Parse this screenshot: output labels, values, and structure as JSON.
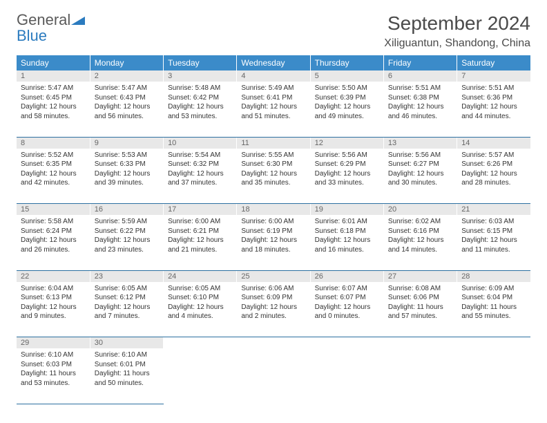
{
  "logo": {
    "word1": "General",
    "word2": "Blue"
  },
  "title": "September 2024",
  "location": "Xiliguantun, Shandong, China",
  "colors": {
    "header_bg": "#3b8bc9",
    "header_text": "#ffffff",
    "daynum_bg": "#e8e8e8",
    "daynum_text": "#666666",
    "rule": "#2b6fa0",
    "logo_gray": "#5a5a5a",
    "logo_blue": "#2b7bbf"
  },
  "weekdays": [
    "Sunday",
    "Monday",
    "Tuesday",
    "Wednesday",
    "Thursday",
    "Friday",
    "Saturday"
  ],
  "days": [
    {
      "n": "1",
      "sr": "5:47 AM",
      "ss": "6:45 PM",
      "dl": "12 hours and 58 minutes."
    },
    {
      "n": "2",
      "sr": "5:47 AM",
      "ss": "6:43 PM",
      "dl": "12 hours and 56 minutes."
    },
    {
      "n": "3",
      "sr": "5:48 AM",
      "ss": "6:42 PM",
      "dl": "12 hours and 53 minutes."
    },
    {
      "n": "4",
      "sr": "5:49 AM",
      "ss": "6:41 PM",
      "dl": "12 hours and 51 minutes."
    },
    {
      "n": "5",
      "sr": "5:50 AM",
      "ss": "6:39 PM",
      "dl": "12 hours and 49 minutes."
    },
    {
      "n": "6",
      "sr": "5:51 AM",
      "ss": "6:38 PM",
      "dl": "12 hours and 46 minutes."
    },
    {
      "n": "7",
      "sr": "5:51 AM",
      "ss": "6:36 PM",
      "dl": "12 hours and 44 minutes."
    },
    {
      "n": "8",
      "sr": "5:52 AM",
      "ss": "6:35 PM",
      "dl": "12 hours and 42 minutes."
    },
    {
      "n": "9",
      "sr": "5:53 AM",
      "ss": "6:33 PM",
      "dl": "12 hours and 39 minutes."
    },
    {
      "n": "10",
      "sr": "5:54 AM",
      "ss": "6:32 PM",
      "dl": "12 hours and 37 minutes."
    },
    {
      "n": "11",
      "sr": "5:55 AM",
      "ss": "6:30 PM",
      "dl": "12 hours and 35 minutes."
    },
    {
      "n": "12",
      "sr": "5:56 AM",
      "ss": "6:29 PM",
      "dl": "12 hours and 33 minutes."
    },
    {
      "n": "13",
      "sr": "5:56 AM",
      "ss": "6:27 PM",
      "dl": "12 hours and 30 minutes."
    },
    {
      "n": "14",
      "sr": "5:57 AM",
      "ss": "6:26 PM",
      "dl": "12 hours and 28 minutes."
    },
    {
      "n": "15",
      "sr": "5:58 AM",
      "ss": "6:24 PM",
      "dl": "12 hours and 26 minutes."
    },
    {
      "n": "16",
      "sr": "5:59 AM",
      "ss": "6:22 PM",
      "dl": "12 hours and 23 minutes."
    },
    {
      "n": "17",
      "sr": "6:00 AM",
      "ss": "6:21 PM",
      "dl": "12 hours and 21 minutes."
    },
    {
      "n": "18",
      "sr": "6:00 AM",
      "ss": "6:19 PM",
      "dl": "12 hours and 18 minutes."
    },
    {
      "n": "19",
      "sr": "6:01 AM",
      "ss": "6:18 PM",
      "dl": "12 hours and 16 minutes."
    },
    {
      "n": "20",
      "sr": "6:02 AM",
      "ss": "6:16 PM",
      "dl": "12 hours and 14 minutes."
    },
    {
      "n": "21",
      "sr": "6:03 AM",
      "ss": "6:15 PM",
      "dl": "12 hours and 11 minutes."
    },
    {
      "n": "22",
      "sr": "6:04 AM",
      "ss": "6:13 PM",
      "dl": "12 hours and 9 minutes."
    },
    {
      "n": "23",
      "sr": "6:05 AM",
      "ss": "6:12 PM",
      "dl": "12 hours and 7 minutes."
    },
    {
      "n": "24",
      "sr": "6:05 AM",
      "ss": "6:10 PM",
      "dl": "12 hours and 4 minutes."
    },
    {
      "n": "25",
      "sr": "6:06 AM",
      "ss": "6:09 PM",
      "dl": "12 hours and 2 minutes."
    },
    {
      "n": "26",
      "sr": "6:07 AM",
      "ss": "6:07 PM",
      "dl": "12 hours and 0 minutes."
    },
    {
      "n": "27",
      "sr": "6:08 AM",
      "ss": "6:06 PM",
      "dl": "11 hours and 57 minutes."
    },
    {
      "n": "28",
      "sr": "6:09 AM",
      "ss": "6:04 PM",
      "dl": "11 hours and 55 minutes."
    },
    {
      "n": "29",
      "sr": "6:10 AM",
      "ss": "6:03 PM",
      "dl": "11 hours and 53 minutes."
    },
    {
      "n": "30",
      "sr": "6:10 AM",
      "ss": "6:01 PM",
      "dl": "11 hours and 50 minutes."
    }
  ],
  "labels": {
    "sunrise": "Sunrise:",
    "sunset": "Sunset:",
    "daylight": "Daylight:"
  },
  "layout": {
    "start_col": 0,
    "cols": 7,
    "rows": 5
  }
}
